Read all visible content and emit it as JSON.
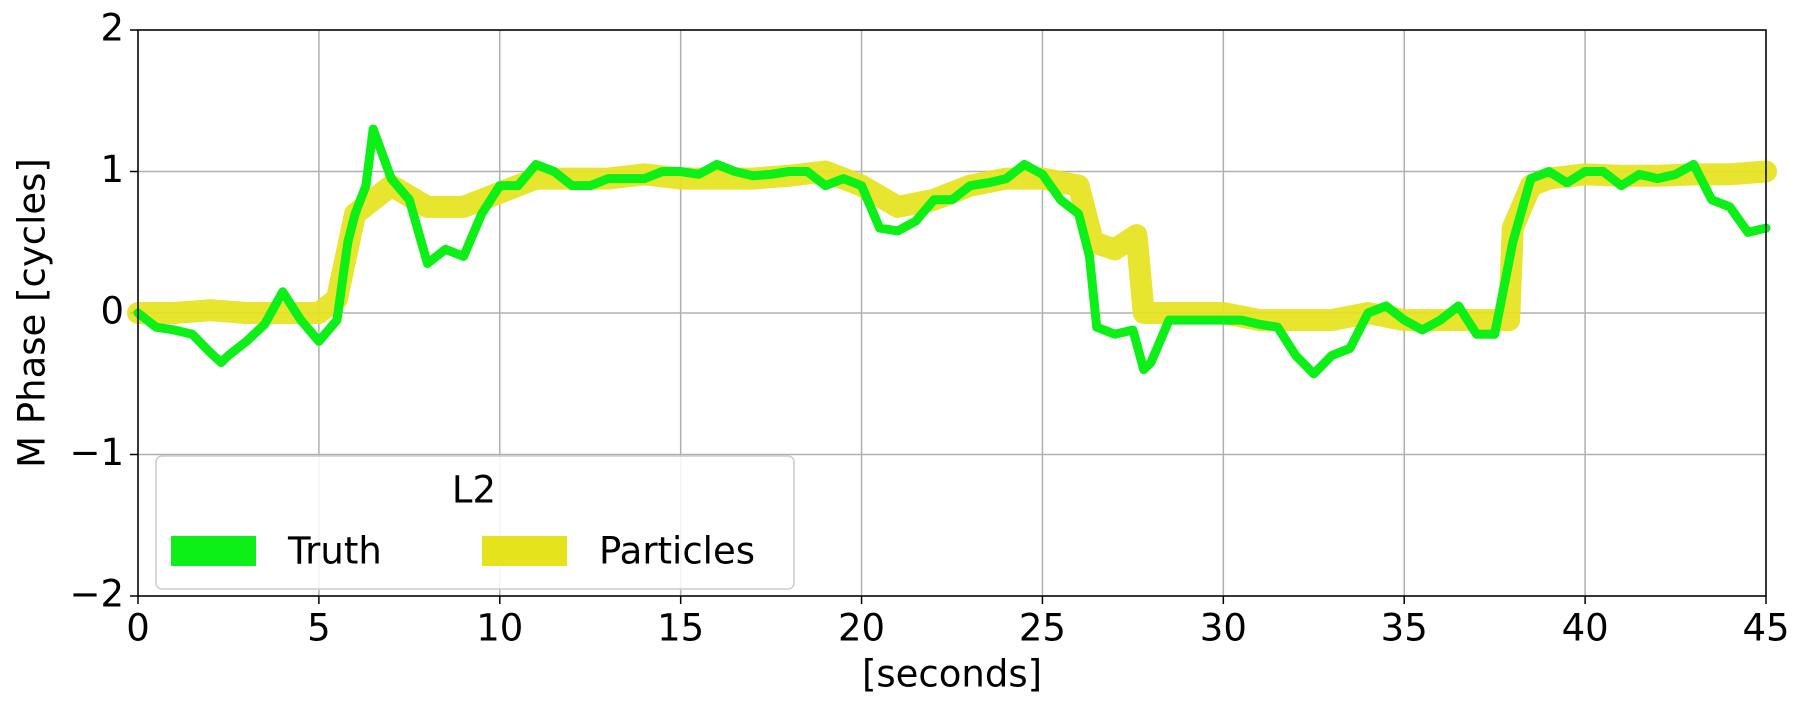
{
  "chart_data": {
    "type": "line",
    "xlabel": "[seconds]",
    "ylabel": "M Phase [cycles]",
    "xlim": [
      0,
      45
    ],
    "ylim": [
      -2,
      2
    ],
    "xticks": [
      0,
      5,
      10,
      15,
      20,
      25,
      30,
      35,
      40,
      45
    ],
    "yticks": [
      {
        "value": -2,
        "label": "−2"
      },
      {
        "value": -1,
        "label": "−1"
      },
      0,
      1,
      2
    ],
    "grid": true,
    "legend": {
      "title": "L2",
      "position": "lower left"
    },
    "series": [
      {
        "name": "Particles",
        "color": "#e5e31b",
        "x": [
          0,
          1,
          2,
          3,
          4,
          5,
          5.5,
          6,
          7,
          8,
          9,
          10,
          11,
          12,
          13,
          14,
          15,
          16,
          17,
          18,
          19,
          20,
          21,
          22,
          23,
          24,
          25,
          26,
          26.4,
          27,
          27.6,
          27.8,
          28,
          29,
          30,
          31,
          32,
          33,
          34,
          35,
          36,
          37,
          37.9,
          38,
          38.5,
          39,
          40,
          41,
          42,
          43,
          44,
          45
        ],
        "values": [
          0,
          0,
          0.02,
          0,
          0,
          0,
          0.1,
          0.7,
          0.9,
          0.75,
          0.75,
          0.85,
          0.95,
          0.95,
          0.95,
          0.98,
          0.95,
          0.95,
          0.95,
          0.97,
          1.0,
          0.9,
          0.75,
          0.8,
          0.9,
          0.95,
          0.95,
          0.9,
          0.5,
          0.45,
          0.55,
          0.0,
          0.0,
          0.0,
          0.0,
          -0.05,
          -0.05,
          -0.05,
          0.0,
          -0.05,
          -0.05,
          -0.05,
          -0.05,
          0.6,
          0.9,
          0.95,
          0.98,
          0.97,
          0.97,
          0.98,
          0.98,
          1.0
        ]
      },
      {
        "name": "Truth",
        "color": "#0cef17",
        "x": [
          0,
          0.5,
          1,
          1.5,
          2,
          2.3,
          2.5,
          3,
          3.5,
          4,
          4.5,
          5,
          5.5,
          5.8,
          6,
          6.3,
          6.5,
          7,
          7.5,
          8,
          8.5,
          9,
          9.5,
          10,
          10.5,
          11,
          11.5,
          12,
          12.5,
          13,
          13.5,
          14,
          14.5,
          15,
          15.5,
          16,
          16.5,
          17,
          17.5,
          18,
          18.5,
          19,
          19.5,
          20,
          20.5,
          21,
          21.5,
          22,
          22.5,
          23,
          23.5,
          24,
          24.5,
          25,
          25.5,
          26,
          26.3,
          26.5,
          27,
          27.5,
          27.8,
          28,
          28.5,
          29,
          29.5,
          30,
          30.5,
          31,
          31.5,
          32,
          32.5,
          33,
          33.5,
          34,
          34.5,
          35,
          35.5,
          36,
          36.5,
          37,
          37.5,
          38,
          38.5,
          39,
          39.5,
          40,
          40.5,
          41,
          41.5,
          42,
          42.5,
          43,
          43.5,
          44,
          44.5,
          45
        ],
        "values": [
          0,
          -0.1,
          -0.12,
          -0.15,
          -0.28,
          -0.35,
          -0.3,
          -0.2,
          -0.08,
          0.15,
          -0.05,
          -0.2,
          -0.05,
          0.5,
          0.7,
          0.9,
          1.3,
          0.95,
          0.8,
          0.35,
          0.45,
          0.4,
          0.7,
          0.9,
          0.9,
          1.05,
          1.0,
          0.9,
          0.9,
          0.95,
          0.95,
          0.95,
          1.0,
          1.0,
          0.98,
          1.05,
          1.0,
          0.97,
          0.98,
          1.0,
          1.0,
          0.9,
          0.95,
          0.9,
          0.6,
          0.58,
          0.65,
          0.8,
          0.8,
          0.9,
          0.92,
          0.95,
          1.05,
          0.98,
          0.8,
          0.7,
          0.4,
          -0.1,
          -0.15,
          -0.12,
          -0.4,
          -0.35,
          -0.05,
          -0.05,
          -0.05,
          -0.05,
          -0.05,
          -0.08,
          -0.1,
          -0.3,
          -0.43,
          -0.3,
          -0.25,
          0.0,
          0.05,
          -0.05,
          -0.12,
          -0.05,
          0.05,
          -0.15,
          -0.15,
          0.5,
          0.95,
          1.0,
          0.92,
          1.0,
          1.0,
          0.9,
          0.98,
          0.95,
          0.98,
          1.05,
          0.8,
          0.75,
          0.57,
          0.6
        ]
      }
    ]
  }
}
